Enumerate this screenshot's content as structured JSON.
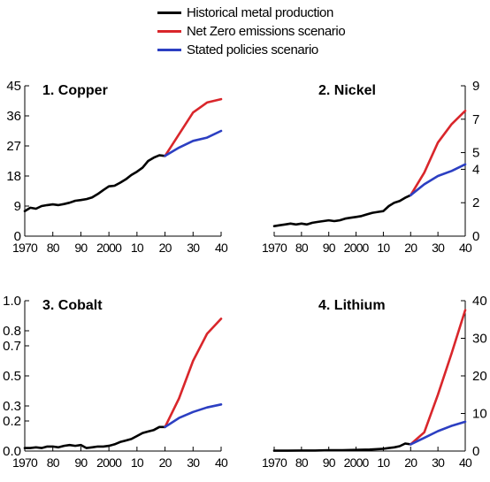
{
  "legend": [
    {
      "label": "Historical metal production",
      "color": "#000000"
    },
    {
      "label": "Net Zero emissions scenario",
      "color": "#d9262b"
    },
    {
      "label": "Stated policies scenario",
      "color": "#2c3fc2"
    }
  ],
  "chart_data": [
    {
      "type": "line",
      "title": "1. Copper",
      "axis_side": "left",
      "xlim": [
        1970,
        2040
      ],
      "ylim": [
        0,
        45
      ],
      "x_ticks": [
        1970,
        1980,
        1990,
        2000,
        2010,
        2020,
        2030,
        2040
      ],
      "x_tick_labels": [
        "1970",
        "80",
        "90",
        "2000",
        "10",
        "20",
        "30",
        "40"
      ],
      "y_ticks": [
        0,
        9,
        18,
        27,
        36,
        45
      ],
      "y_tick_labels": [
        "0",
        "9",
        "18",
        "27",
        "36",
        "45"
      ],
      "series": [
        {
          "name": "Historical metal production",
          "color": "#000000",
          "x": [
            1970,
            1972,
            1974,
            1976,
            1978,
            1980,
            1982,
            1984,
            1986,
            1988,
            1990,
            1992,
            1994,
            1996,
            1998,
            2000,
            2002,
            2004,
            2006,
            2008,
            2010,
            2012,
            2014,
            2016,
            2018,
            2020
          ],
          "y": [
            7.5,
            8.5,
            8.2,
            9.0,
            9.3,
            9.5,
            9.3,
            9.6,
            10.0,
            10.6,
            10.8,
            11.1,
            11.6,
            12.6,
            13.8,
            14.9,
            15.1,
            16.0,
            17.0,
            18.3,
            19.3,
            20.5,
            22.5,
            23.5,
            24.2,
            24.0
          ]
        },
        {
          "name": "Net Zero emissions scenario",
          "color": "#d9262b",
          "x": [
            2020,
            2025,
            2030,
            2035,
            2040
          ],
          "y": [
            24.0,
            30.5,
            37.0,
            40.0,
            41.0
          ]
        },
        {
          "name": "Stated policies scenario",
          "color": "#2c3fc2",
          "x": [
            2020,
            2025,
            2030,
            2035,
            2040
          ],
          "y": [
            24.0,
            26.5,
            28.5,
            29.5,
            31.5
          ]
        }
      ]
    },
    {
      "type": "line",
      "title": "2. Nickel",
      "axis_side": "right",
      "xlim": [
        1970,
        2040
      ],
      "ylim": [
        0,
        9
      ],
      "x_ticks": [
        1970,
        1980,
        1990,
        2000,
        2010,
        2020,
        2030,
        2040
      ],
      "x_tick_labels": [
        "1970",
        "80",
        "90",
        "2000",
        "10",
        "20",
        "30",
        "40"
      ],
      "y_ticks": [
        0,
        2,
        4,
        5,
        7,
        9
      ],
      "y_tick_labels": [
        "0",
        "2",
        "4",
        "5",
        "7",
        "9"
      ],
      "series": [
        {
          "name": "Historical metal production",
          "color": "#000000",
          "x": [
            1970,
            1972,
            1974,
            1976,
            1978,
            1980,
            1982,
            1984,
            1986,
            1988,
            1990,
            1992,
            1994,
            1996,
            1998,
            2000,
            2002,
            2004,
            2006,
            2008,
            2010,
            2012,
            2014,
            2016,
            2018,
            2020
          ],
          "y": [
            0.6,
            0.65,
            0.7,
            0.75,
            0.7,
            0.75,
            0.7,
            0.8,
            0.85,
            0.9,
            0.95,
            0.9,
            0.95,
            1.05,
            1.1,
            1.15,
            1.2,
            1.3,
            1.4,
            1.45,
            1.5,
            1.8,
            2.0,
            2.1,
            2.3,
            2.45
          ]
        },
        {
          "name": "Net Zero emissions scenario",
          "color": "#d9262b",
          "x": [
            2020,
            2025,
            2030,
            2035,
            2040
          ],
          "y": [
            2.45,
            3.8,
            5.6,
            6.7,
            7.5
          ]
        },
        {
          "name": "Stated policies scenario",
          "color": "#2c3fc2",
          "x": [
            2020,
            2025,
            2030,
            2035,
            2040
          ],
          "y": [
            2.45,
            3.1,
            3.6,
            3.9,
            4.3
          ]
        }
      ]
    },
    {
      "type": "line",
      "title": "3. Cobalt",
      "axis_side": "left",
      "xlim": [
        1970,
        2040
      ],
      "ylim": [
        0,
        1.0
      ],
      "x_ticks": [
        1970,
        1980,
        1990,
        2000,
        2010,
        2020,
        2030,
        2040
      ],
      "x_tick_labels": [
        "1970",
        "80",
        "90",
        "2000",
        "10",
        "20",
        "30",
        "40"
      ],
      "y_ticks": [
        0,
        0.2,
        0.3,
        0.5,
        0.7,
        0.8,
        1.0
      ],
      "y_tick_labels": [
        "0.0",
        "0.2",
        "0.3",
        "0.5",
        "0.7",
        "0.8",
        "1.0"
      ],
      "series": [
        {
          "name": "Historical metal production",
          "color": "#000000",
          "x": [
            1970,
            1972,
            1974,
            1976,
            1978,
            1980,
            1982,
            1984,
            1986,
            1988,
            1990,
            1992,
            1994,
            1996,
            1998,
            2000,
            2002,
            2004,
            2006,
            2008,
            2010,
            2012,
            2014,
            2016,
            2018,
            2020
          ],
          "y": [
            0.02,
            0.02,
            0.025,
            0.02,
            0.03,
            0.03,
            0.025,
            0.035,
            0.04,
            0.035,
            0.04,
            0.02,
            0.025,
            0.03,
            0.03,
            0.035,
            0.045,
            0.06,
            0.07,
            0.08,
            0.1,
            0.12,
            0.13,
            0.14,
            0.16,
            0.16
          ]
        },
        {
          "name": "Net Zero emissions scenario",
          "color": "#d9262b",
          "x": [
            2020,
            2025,
            2030,
            2035,
            2040
          ],
          "y": [
            0.16,
            0.35,
            0.6,
            0.78,
            0.88
          ]
        },
        {
          "name": "Stated policies scenario",
          "color": "#2c3fc2",
          "x": [
            2020,
            2025,
            2030,
            2035,
            2040
          ],
          "y": [
            0.16,
            0.22,
            0.26,
            0.29,
            0.31
          ]
        }
      ]
    },
    {
      "type": "line",
      "title": "4. Lithium",
      "axis_side": "right",
      "xlim": [
        1970,
        2040
      ],
      "ylim": [
        0,
        40
      ],
      "x_ticks": [
        1970,
        1980,
        1990,
        2000,
        2010,
        2020,
        2030,
        2040
      ],
      "x_tick_labels": [
        "1970",
        "80",
        "90",
        "2000",
        "10",
        "20",
        "30",
        "40"
      ],
      "y_ticks": [
        0,
        10,
        20,
        30,
        40
      ],
      "y_tick_labels": [
        "0",
        "10",
        "20",
        "30",
        "40"
      ],
      "series": [
        {
          "name": "Historical metal production",
          "color": "#000000",
          "x": [
            1970,
            1975,
            1980,
            1985,
            1990,
            1995,
            2000,
            2005,
            2010,
            2012,
            2014,
            2016,
            2018,
            2020
          ],
          "y": [
            0.1,
            0.1,
            0.15,
            0.15,
            0.2,
            0.2,
            0.3,
            0.4,
            0.6,
            0.8,
            1.0,
            1.3,
            2.0,
            1.8
          ]
        },
        {
          "name": "Net Zero emissions scenario",
          "color": "#d9262b",
          "x": [
            2020,
            2025,
            2030,
            2035,
            2040
          ],
          "y": [
            1.8,
            5.0,
            15.0,
            26.0,
            37.5
          ]
        },
        {
          "name": "Stated policies scenario",
          "color": "#2c3fc2",
          "x": [
            2020,
            2025,
            2030,
            2035,
            2040
          ],
          "y": [
            1.8,
            3.5,
            5.3,
            6.7,
            7.8
          ]
        }
      ]
    }
  ]
}
